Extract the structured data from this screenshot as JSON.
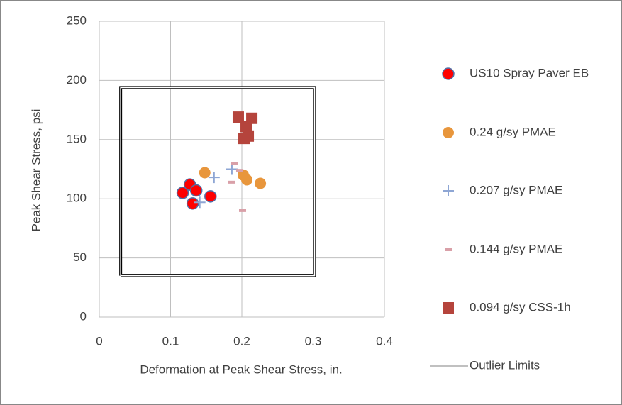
{
  "chart_data": {
    "type": "scatter",
    "x_label": "Deformation at Peak Shear Stress, in.",
    "y_label": "Peak Shear Stress, psi",
    "xlim": [
      0,
      0.4
    ],
    "xticks": [
      0,
      0.1,
      0.2,
      0.3,
      0.4
    ],
    "ylim": [
      0,
      250
    ],
    "yticks": [
      0,
      50,
      100,
      150,
      200,
      250
    ],
    "grid": true,
    "legend": "right",
    "series": [
      {
        "name": "US10 Spray Paver EB",
        "marker": "circle",
        "color": "#ff0000",
        "x": [
          0.117,
          0.127,
          0.136,
          0.131,
          0.156
        ],
        "values": [
          105,
          112,
          107,
          96,
          102
        ]
      },
      {
        "name": "0.24 g/sy PMAE",
        "marker": "circle",
        "color": "#e8963c",
        "x": [
          0.148,
          0.202,
          0.207,
          0.226
        ],
        "values": [
          122,
          120,
          116,
          113
        ]
      },
      {
        "name": "0.207 g/sy PMAE",
        "marker": "plus",
        "color": "#8ea6d4",
        "x": [
          0.141,
          0.161,
          0.186
        ],
        "values": [
          97,
          118,
          125
        ]
      },
      {
        "name": "0.144 g/sy PMAE",
        "marker": "dash",
        "color": "#d9a0a8",
        "x": [
          0.19,
          0.186,
          0.201,
          0.197
        ],
        "values": [
          130,
          114,
          90,
          124
        ]
      },
      {
        "name": "0.094 g/sy CSS-1h",
        "marker": "square",
        "color": "#b5443c",
        "x": [
          0.195,
          0.214,
          0.206,
          0.209,
          0.203
        ],
        "values": [
          169,
          168,
          161,
          153,
          151
        ]
      },
      {
        "name": "Outlier Limits",
        "marker": "line",
        "color": "#000000",
        "x": [
          0.03,
          0.302,
          0.302,
          0.03,
          0.03
        ],
        "values": [
          35,
          35,
          194,
          194,
          35
        ]
      }
    ]
  }
}
